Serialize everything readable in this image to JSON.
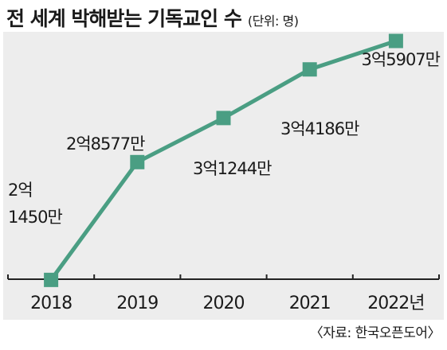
{
  "header": {
    "title": "전 세계 박해받는 기독교인 수",
    "unit": "(단위: 명)"
  },
  "footer": {
    "source": "〈자료: 한국오픈도어〉"
  },
  "colors": {
    "line": "#4a9e83",
    "background": "#ededed",
    "axis": "#222222",
    "text": "#1a1a1a"
  },
  "chart_data": {
    "type": "line",
    "x": [
      "2018",
      "2019",
      "2020",
      "2021",
      "2022"
    ],
    "tick_labels": [
      "2018",
      "2019",
      "2020",
      "2021",
      "2022년"
    ],
    "series": [
      {
        "values": [
          214500000,
          285770000,
          312440000,
          341860000,
          359070000
        ]
      }
    ],
    "data_labels": [
      "2억\n1450만",
      "2억8577만",
      "3억1244만",
      "3억4186만",
      "3억5907만"
    ],
    "grid": false,
    "legend": "none"
  }
}
